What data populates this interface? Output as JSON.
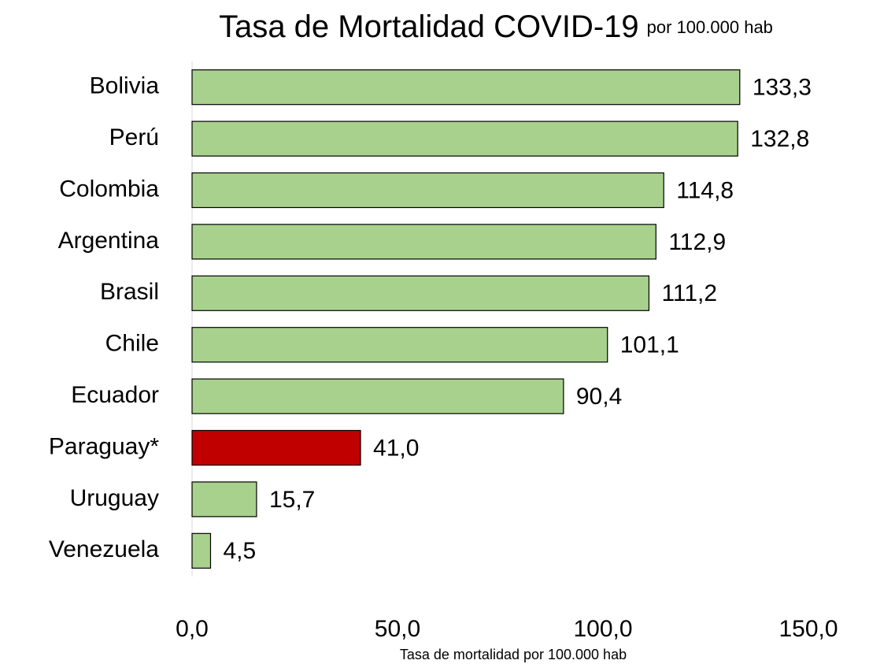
{
  "chart_data": {
    "type": "bar",
    "orientation": "horizontal",
    "title": "Tasa de Mortalidad COVID-19",
    "subtitle": "por 100.000 hab",
    "xlabel": "Tasa de mortalidad por 100.000 hab",
    "categories": [
      "Bolivia",
      "Perú",
      "Colombia",
      "Argentina",
      "Brasil",
      "Chile",
      "Ecuador",
      "Paraguay*",
      "Uruguay",
      "Venezuela"
    ],
    "values": [
      133.3,
      132.8,
      114.8,
      112.9,
      111.2,
      101.1,
      90.4,
      41.0,
      15.7,
      4.5
    ],
    "value_labels": [
      "133,3",
      "132,8",
      "114,8",
      "112,9",
      "111,2",
      "101,1",
      "90,4",
      "41,0",
      "15,7",
      "4,5"
    ],
    "colors": [
      "#a9d18e",
      "#a9d18e",
      "#a9d18e",
      "#a9d18e",
      "#a9d18e",
      "#a9d18e",
      "#a9d18e",
      "#c00000",
      "#a9d18e",
      "#a9d18e"
    ],
    "xlim": [
      0,
      150
    ],
    "xticks": [
      {
        "value": 0,
        "label": "0,0"
      },
      {
        "value": 50,
        "label": "50,0"
      },
      {
        "value": 100,
        "label": "100,0"
      },
      {
        "value": 150,
        "label": "150,0"
      }
    ],
    "grid": false
  }
}
